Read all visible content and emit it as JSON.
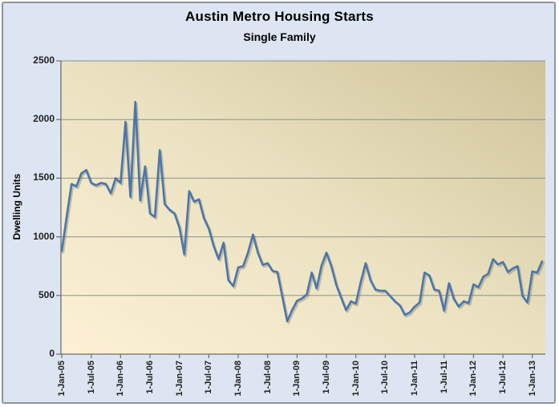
{
  "title": "Austin Metro Housing Starts",
  "subtitle": "Single Family",
  "y_axis_title": "Dwelling Units",
  "colors": {
    "chart_background": "#dce5f1",
    "chart_border": "#8d9399",
    "plot_gradient_bottom_left": "#fdf0d6",
    "plot_gradient_mid": "#eae2c1",
    "plot_gradient_top_right": "#cfc39a",
    "gridline": "#909090",
    "axis": "#6e6e6e",
    "line": "#4a76ae",
    "line_shadow": "rgba(100,90,60,0.30)",
    "text": "#1f1f1f"
  },
  "chart_data": {
    "type": "line",
    "title": "Austin Metro Housing Starts",
    "subtitle": "Single Family",
    "xlabel": "",
    "ylabel": "Dwelling Units",
    "ylim": [
      0,
      2500
    ],
    "y_ticks": [
      0,
      500,
      1000,
      1500,
      2000,
      2500
    ],
    "x_ticks": [
      "1-Jan-05",
      "1-Jul-05",
      "1-Jan-06",
      "1-Jul-06",
      "1-Jan-07",
      "1-Jul-07",
      "1-Jan-08",
      "1-Jul-08",
      "1-Jan-09",
      "1-Jul-09",
      "1-Jan-10",
      "1-Jul-10",
      "1-Jan-11",
      "1-Jul-11",
      "1-Jan-12",
      "1-Jul-12",
      "1-Jan-13"
    ],
    "grid": "horizontal",
    "legend_position": "none",
    "categories": [
      "Jan-05",
      "Feb-05",
      "Mar-05",
      "Apr-05",
      "May-05",
      "Jun-05",
      "Jul-05",
      "Aug-05",
      "Sep-05",
      "Oct-05",
      "Nov-05",
      "Dec-05",
      "Jan-06",
      "Feb-06",
      "Mar-06",
      "Apr-06",
      "May-06",
      "Jun-06",
      "Jul-06",
      "Aug-06",
      "Sep-06",
      "Oct-06",
      "Nov-06",
      "Dec-06",
      "Jan-07",
      "Feb-07",
      "Mar-07",
      "Apr-07",
      "May-07",
      "Jun-07",
      "Jul-07",
      "Aug-07",
      "Sep-07",
      "Oct-07",
      "Nov-07",
      "Dec-07",
      "Jan-08",
      "Feb-08",
      "Mar-08",
      "Apr-08",
      "May-08",
      "Jun-08",
      "Jul-08",
      "Aug-08",
      "Sep-08",
      "Oct-08",
      "Nov-08",
      "Dec-08",
      "Jan-09",
      "Feb-09",
      "Mar-09",
      "Apr-09",
      "May-09",
      "Jun-09",
      "Jul-09",
      "Aug-09",
      "Sep-09",
      "Oct-09",
      "Nov-09",
      "Dec-09",
      "Jan-10",
      "Feb-10",
      "Mar-10",
      "Apr-10",
      "May-10",
      "Jun-10",
      "Jul-10",
      "Aug-10",
      "Sep-10",
      "Oct-10",
      "Nov-10",
      "Dec-10",
      "Jan-11",
      "Feb-11",
      "Mar-11",
      "Apr-11",
      "May-11",
      "Jun-11",
      "Jul-11",
      "Aug-11",
      "Sep-11",
      "Oct-11",
      "Nov-11",
      "Dec-11",
      "Jan-12",
      "Feb-12",
      "Mar-12",
      "Apr-12",
      "May-12",
      "Jun-12",
      "Jul-12",
      "Aug-12",
      "Sep-12",
      "Oct-12",
      "Nov-12",
      "Dec-12",
      "Jan-13",
      "Feb-13",
      "Mar-13"
    ],
    "series": [
      {
        "name": "Single Family Housing Starts",
        "values": [
          880,
          1170,
          1450,
          1430,
          1540,
          1570,
          1460,
          1440,
          1460,
          1450,
          1370,
          1500,
          1460,
          1980,
          1340,
          2150,
          1310,
          1600,
          1200,
          1170,
          1740,
          1280,
          1230,
          1200,
          1080,
          850,
          1390,
          1300,
          1320,
          1160,
          1070,
          920,
          810,
          950,
          630,
          580,
          740,
          750,
          865,
          1020,
          865,
          760,
          775,
          710,
          700,
          490,
          280,
          375,
          455,
          475,
          510,
          695,
          560,
          755,
          865,
          750,
          590,
          480,
          375,
          450,
          430,
          615,
          775,
          630,
          550,
          540,
          540,
          495,
          450,
          415,
          335,
          355,
          405,
          440,
          695,
          670,
          550,
          540,
          370,
          605,
          470,
          405,
          450,
          435,
          595,
          570,
          660,
          685,
          810,
          765,
          785,
          700,
          730,
          750,
          495,
          440,
          705,
          695,
          790
        ]
      }
    ]
  }
}
